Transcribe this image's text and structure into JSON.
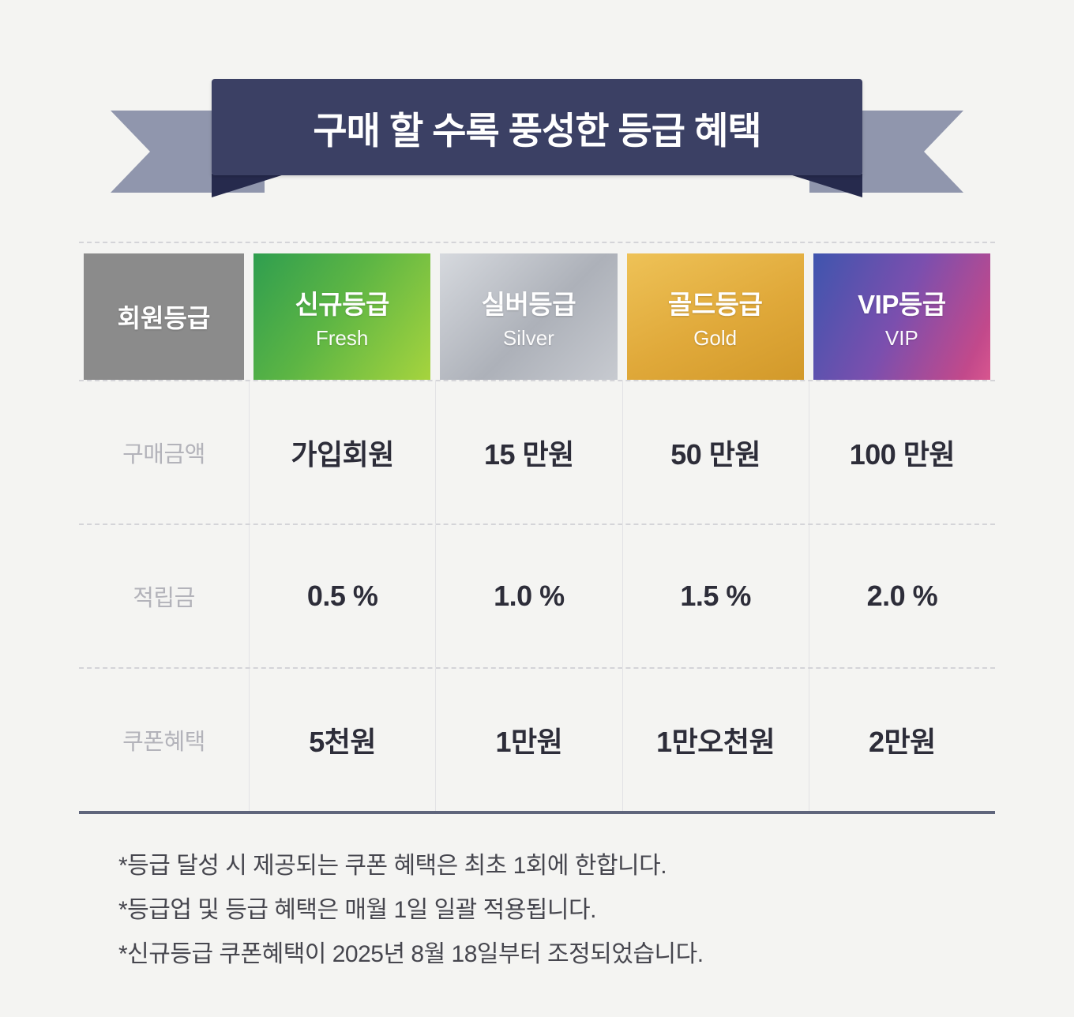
{
  "banner": {
    "title": "구매 할 수록 풍성한 등급 혜택"
  },
  "table": {
    "corner_label": "회원등급",
    "tiers": [
      {
        "name": "신규등급",
        "sub": "Fresh",
        "color": "#5cb544"
      },
      {
        "name": "실버등급",
        "sub": "Silver",
        "color": "#adb1b9"
      },
      {
        "name": "골드등급",
        "sub": "Gold",
        "color": "#e0a93a"
      },
      {
        "name": "VIP등급",
        "sub": "VIP",
        "color": "#7b4fae"
      }
    ],
    "rows": [
      {
        "label": "구매금액",
        "values": [
          "가입회원",
          "15 만원",
          "50 만원",
          "100 만원"
        ]
      },
      {
        "label": "적립금",
        "values": [
          "0.5 %",
          "1.0 %",
          "1.5 %",
          "2.0 %"
        ]
      },
      {
        "label": "쿠폰혜택",
        "values": [
          "5천원",
          "1만원",
          "1만오천원",
          "2만원"
        ]
      }
    ]
  },
  "notes": [
    "*등급 달성 시 제공되는 쿠폰 혜택은 최초 1회에 한합니다.",
    "*등급업 및 등급 혜택은 매월 1일 일괄 적용됩니다.",
    "*신규등급 쿠폰혜택이 2025년 8월 18일부터 조정되었습니다."
  ],
  "colors": {
    "background": "#f4f4f2",
    "banner_center": "#3b4064",
    "ribbon_arm": "#9096ad",
    "ribbon_fold": "#262a4d",
    "corner_header": "#8b8b8b",
    "table_bottom_border": "#5f657c"
  }
}
